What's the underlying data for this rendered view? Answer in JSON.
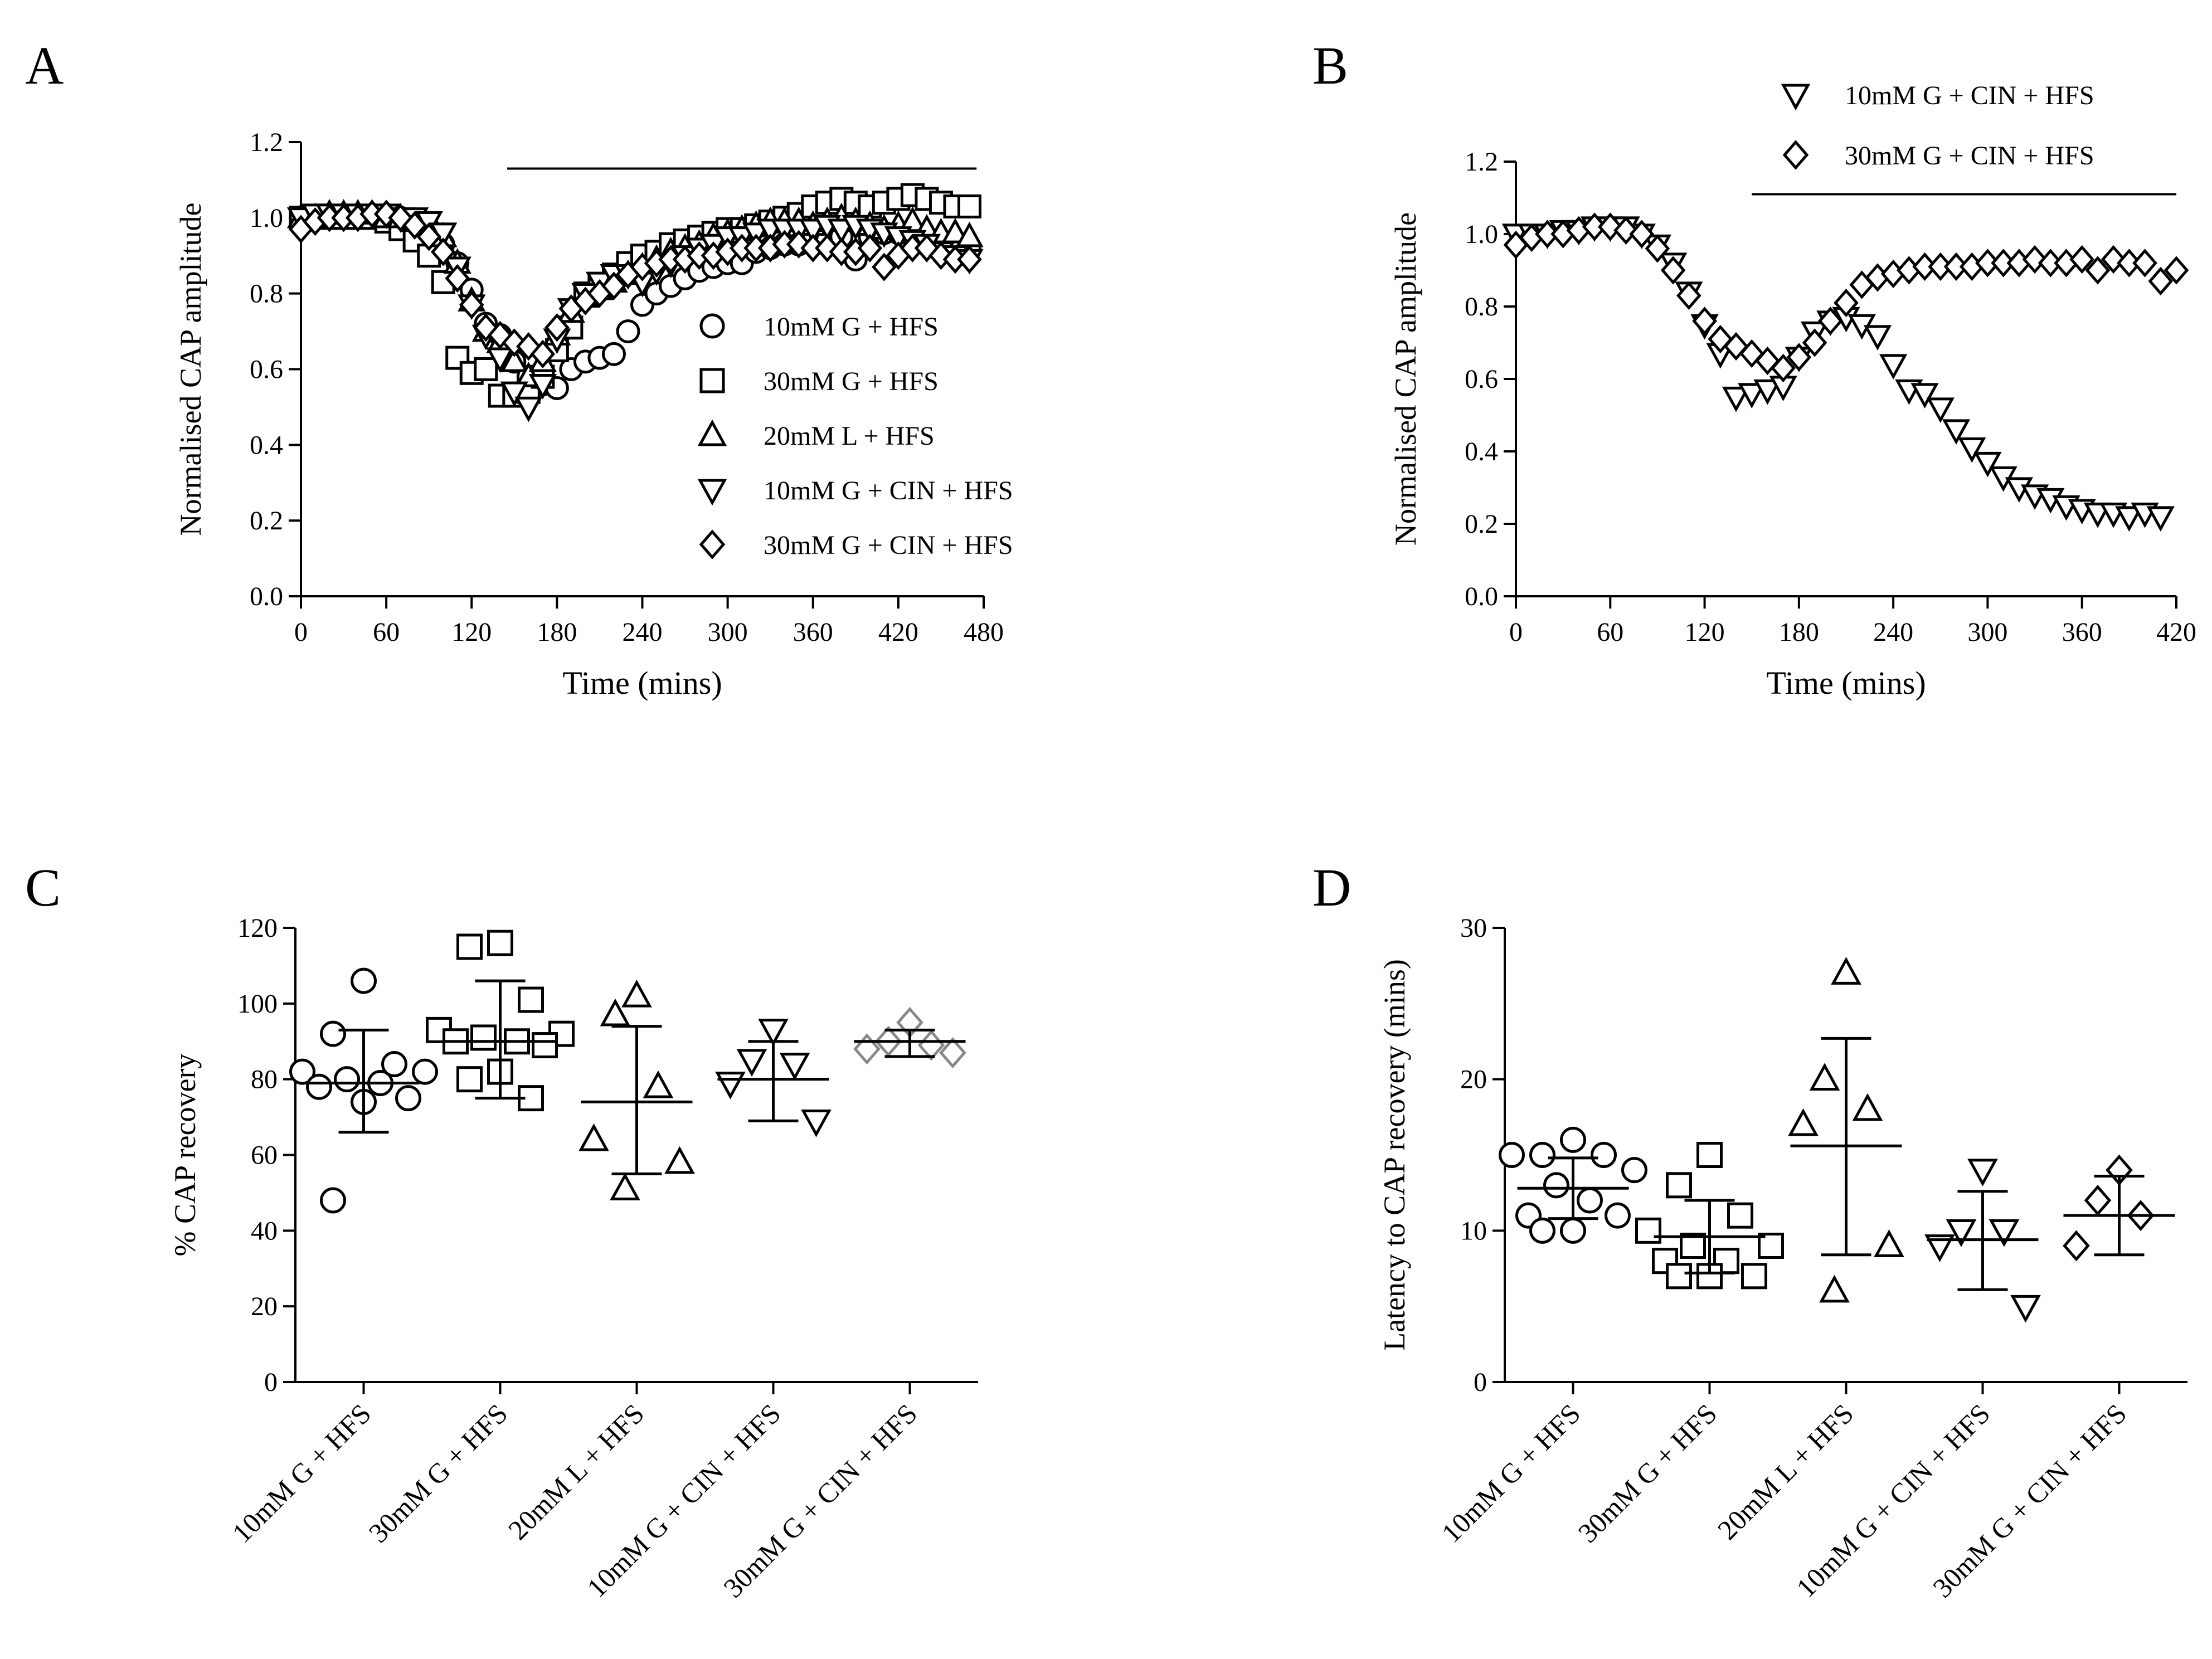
{
  "chart_data": [
    {
      "panel": "A",
      "type": "scatter",
      "xlabel": "Time (mins)",
      "ylabel": "Normalised CAP amplitude",
      "xlim": [
        0,
        480
      ],
      "ylim": [
        0.0,
        1.2
      ],
      "xticks": [
        "0",
        "60",
        "120",
        "180",
        "240",
        "300",
        "360",
        "420",
        "480"
      ],
      "yticks": [
        "0.0",
        "0.2",
        "0.4",
        "0.6",
        "0.8",
        "1.0",
        "1.2"
      ],
      "bar": {
        "x": [
          145,
          475
        ],
        "y": 1.13
      },
      "legend": "right",
      "series": [
        {
          "name": "10mM G + HFS",
          "marker": "circle",
          "x": [
            0,
            10,
            20,
            30,
            40,
            50,
            60,
            70,
            80,
            90,
            100,
            110,
            120,
            130,
            140,
            150,
            160,
            170,
            180,
            190,
            200,
            210,
            220,
            230,
            240,
            250,
            260,
            270,
            280,
            290,
            300,
            310,
            320,
            330,
            340,
            350,
            360,
            370,
            380,
            390,
            400,
            410,
            420,
            430,
            440,
            450,
            460,
            470
          ],
          "y": [
            0.99,
            1.0,
            1.0,
            1.0,
            1.0,
            1.0,
            1.0,
            1.0,
            0.99,
            0.97,
            0.93,
            0.88,
            0.81,
            0.72,
            0.69,
            0.62,
            0.58,
            0.56,
            0.55,
            0.6,
            0.62,
            0.63,
            0.64,
            0.7,
            0.77,
            0.8,
            0.82,
            0.84,
            0.86,
            0.87,
            0.88,
            0.88,
            0.91,
            0.92,
            0.93,
            0.93,
            0.94,
            0.94,
            0.95,
            0.89,
            0.95,
            0.96,
            0.96,
            0.95,
            0.93,
            0.92,
            0.91,
            0.92
          ]
        },
        {
          "name": "30mM G + HFS",
          "marker": "square",
          "x": [
            0,
            10,
            20,
            30,
            40,
            50,
            60,
            70,
            80,
            90,
            100,
            110,
            120,
            130,
            140,
            150,
            160,
            170,
            180,
            190,
            200,
            210,
            220,
            230,
            240,
            250,
            260,
            270,
            280,
            290,
            300,
            310,
            320,
            330,
            340,
            350,
            360,
            370,
            380,
            390,
            400,
            410,
            420,
            430,
            440,
            450,
            460,
            470
          ],
          "y": [
            1.0,
            1.0,
            1.0,
            1.0,
            1.0,
            1.0,
            0.99,
            0.97,
            0.94,
            0.9,
            0.83,
            0.63,
            0.59,
            0.6,
            0.53,
            0.53,
            0.54,
            0.58,
            0.65,
            0.71,
            0.8,
            0.82,
            0.85,
            0.88,
            0.9,
            0.91,
            0.93,
            0.94,
            0.95,
            0.96,
            0.97,
            0.97,
            0.98,
            0.99,
            1.0,
            1.01,
            1.03,
            1.04,
            1.05,
            1.04,
            1.03,
            1.04,
            1.05,
            1.06,
            1.05,
            1.04,
            1.03,
            1.03
          ]
        },
        {
          "name": "20mM L + HFS",
          "marker": "triangle-up",
          "x": [
            0,
            10,
            20,
            30,
            40,
            50,
            60,
            70,
            80,
            90,
            100,
            110,
            120,
            130,
            140,
            150,
            160,
            170,
            180,
            190,
            200,
            210,
            220,
            230,
            240,
            250,
            260,
            270,
            280,
            290,
            300,
            310,
            320,
            330,
            340,
            350,
            360,
            370,
            380,
            390,
            400,
            410,
            420,
            430,
            440,
            450,
            460,
            470
          ],
          "y": [
            1.0,
            1.0,
            1.01,
            1.01,
            1.01,
            1.01,
            1.0,
            1.0,
            0.99,
            0.98,
            0.95,
            0.88,
            0.78,
            0.7,
            0.67,
            0.62,
            0.58,
            0.62,
            0.69,
            0.75,
            0.79,
            0.81,
            0.83,
            0.85,
            0.87,
            0.89,
            0.91,
            0.92,
            0.93,
            0.95,
            0.96,
            0.97,
            0.98,
            0.99,
            0.99,
            0.99,
            0.98,
            0.99,
            1.0,
            0.99,
            0.98,
            0.97,
            0.98,
            0.99,
            0.97,
            0.96,
            0.96,
            0.95
          ]
        },
        {
          "name": "10mM G + CIN + HFS",
          "marker": "triangle-down",
          "x": [
            0,
            10,
            20,
            30,
            40,
            50,
            60,
            70,
            80,
            90,
            100,
            110,
            120,
            130,
            140,
            150,
            160,
            170,
            180,
            190,
            200,
            210,
            220,
            230,
            240,
            250,
            260,
            270,
            280,
            290,
            300,
            310,
            320,
            330,
            340,
            350,
            360,
            370,
            380,
            390,
            400,
            410,
            420,
            430,
            440,
            450,
            460,
            470
          ],
          "y": [
            1.0,
            1.01,
            1.01,
            1.01,
            1.01,
            1.01,
            1.01,
            1.0,
            1.0,
            0.99,
            0.96,
            0.87,
            0.77,
            0.69,
            0.63,
            0.54,
            0.5,
            0.56,
            0.68,
            0.76,
            0.8,
            0.83,
            0.85,
            0.85,
            0.83,
            0.86,
            0.88,
            0.9,
            0.92,
            0.93,
            0.95,
            0.95,
            0.96,
            0.97,
            0.97,
            0.97,
            0.97,
            0.98,
            0.97,
            0.98,
            0.97,
            0.96,
            0.95,
            0.94,
            0.93,
            0.91,
            0.9,
            0.89
          ]
        },
        {
          "name": "30mM G + CIN + HFS",
          "marker": "diamond",
          "x": [
            0,
            10,
            20,
            30,
            40,
            50,
            60,
            70,
            80,
            90,
            100,
            110,
            120,
            130,
            140,
            150,
            160,
            170,
            180,
            190,
            200,
            210,
            220,
            230,
            240,
            250,
            260,
            270,
            280,
            290,
            300,
            310,
            320,
            330,
            340,
            350,
            360,
            370,
            380,
            390,
            400,
            410,
            420,
            430,
            440,
            450,
            460,
            470
          ],
          "y": [
            0.97,
            0.99,
            1.0,
            1.0,
            1.0,
            1.01,
            1.01,
            1.0,
            0.98,
            0.95,
            0.91,
            0.84,
            0.77,
            0.71,
            0.69,
            0.67,
            0.66,
            0.64,
            0.71,
            0.76,
            0.78,
            0.8,
            0.82,
            0.85,
            0.87,
            0.88,
            0.89,
            0.89,
            0.9,
            0.9,
            0.91,
            0.92,
            0.92,
            0.92,
            0.93,
            0.93,
            0.92,
            0.92,
            0.91,
            0.91,
            0.92,
            0.87,
            0.9,
            0.92,
            0.92,
            0.9,
            0.89,
            0.89
          ]
        }
      ]
    },
    {
      "panel": "B",
      "type": "scatter",
      "xlabel": "Time (mins)",
      "ylabel": "Normalised CAP amplitude",
      "xlim": [
        0,
        420
      ],
      "ylim": [
        0.0,
        1.2
      ],
      "xticks": [
        "0",
        "60",
        "120",
        "180",
        "240",
        "300",
        "360",
        "420"
      ],
      "yticks": [
        "0.0",
        "0.2",
        "0.4",
        "0.6",
        "0.8",
        "1.0",
        "1.2"
      ],
      "bar": {
        "x": [
          150,
          420
        ],
        "y": 1.11
      },
      "legend": "top",
      "series": [
        {
          "name": "10mM G + CIN + HFS",
          "marker": "triangle-down",
          "x": [
            0,
            10,
            20,
            30,
            40,
            50,
            60,
            70,
            80,
            90,
            100,
            110,
            120,
            130,
            140,
            150,
            160,
            170,
            180,
            190,
            200,
            210,
            220,
            230,
            240,
            250,
            260,
            270,
            280,
            290,
            300,
            310,
            320,
            330,
            340,
            350,
            360,
            370,
            380,
            390,
            400,
            410
          ],
          "y": [
            1.0,
            1.0,
            1.0,
            1.01,
            1.01,
            1.02,
            1.02,
            1.02,
            1.0,
            0.97,
            0.92,
            0.84,
            0.75,
            0.67,
            0.55,
            0.56,
            0.57,
            0.58,
            0.66,
            0.73,
            0.76,
            0.77,
            0.75,
            0.72,
            0.64,
            0.57,
            0.56,
            0.52,
            0.46,
            0.41,
            0.37,
            0.33,
            0.3,
            0.28,
            0.27,
            0.25,
            0.24,
            0.23,
            0.23,
            0.22,
            0.23,
            0.22
          ]
        },
        {
          "name": "30mM G + CIN + HFS",
          "marker": "diamond",
          "x": [
            0,
            10,
            20,
            30,
            40,
            50,
            60,
            70,
            80,
            90,
            100,
            110,
            120,
            130,
            140,
            150,
            160,
            170,
            180,
            190,
            200,
            210,
            220,
            230,
            240,
            250,
            260,
            270,
            280,
            290,
            300,
            310,
            320,
            330,
            340,
            350,
            360,
            370,
            380,
            390,
            400,
            410,
            420
          ],
          "y": [
            0.97,
            0.99,
            1.0,
            1.0,
            1.01,
            1.02,
            1.02,
            1.01,
            1.0,
            0.96,
            0.9,
            0.83,
            0.76,
            0.71,
            0.69,
            0.67,
            0.65,
            0.63,
            0.66,
            0.7,
            0.76,
            0.81,
            0.86,
            0.88,
            0.89,
            0.9,
            0.91,
            0.91,
            0.91,
            0.91,
            0.92,
            0.92,
            0.92,
            0.93,
            0.92,
            0.92,
            0.93,
            0.9,
            0.93,
            0.92,
            0.92,
            0.87,
            0.9
          ]
        }
      ]
    },
    {
      "panel": "C",
      "type": "scatter",
      "ylabel": "% CAP recovery",
      "ylim": [
        0,
        120
      ],
      "yticks": [
        "0",
        "20",
        "40",
        "60",
        "80",
        "100",
        "120"
      ],
      "categories": [
        "10mM G + HFS",
        "30mM G + HFS",
        "20mM L + HFS",
        "10mM G + CIN + HFS",
        "30mM G + CIN + HFS"
      ],
      "groups": [
        {
          "marker": "circle",
          "mean": 79,
          "sd_low": 66,
          "sd_high": 93,
          "points": [
            106,
            92,
            84,
            82,
            82,
            80,
            79,
            78,
            75,
            74,
            48
          ]
        },
        {
          "marker": "square",
          "mean": 90,
          "sd_low": 75,
          "sd_high": 106,
          "points": [
            116,
            115,
            101,
            93,
            92,
            91,
            90,
            90,
            89,
            82,
            80,
            75
          ]
        },
        {
          "marker": "triangle-up",
          "mean": 74,
          "sd_low": 55,
          "sd_high": 94,
          "points": [
            102,
            97,
            78,
            64,
            58,
            51
          ]
        },
        {
          "marker": "triangle-down",
          "mean": 80,
          "sd_low": 69,
          "sd_high": 90,
          "points": [
            93,
            85,
            84,
            79,
            69
          ]
        },
        {
          "marker": "diamond-grey",
          "mean": 90,
          "sd_low": 86,
          "sd_high": 93,
          "points": [
            95,
            90,
            89,
            88,
            87
          ]
        }
      ]
    },
    {
      "panel": "D",
      "type": "scatter",
      "ylabel": "Latency to CAP recovery (mins)",
      "ylim": [
        0,
        30
      ],
      "yticks": [
        "0",
        "10",
        "20",
        "30"
      ],
      "categories": [
        "10mM G + HFS",
        "30mM G + HFS",
        "20mM L + HFS",
        "10mM G + CIN + HFS",
        "30mM G + CIN + HFS"
      ],
      "groups": [
        {
          "marker": "circle",
          "mean": 12.8,
          "sd_low": 10.8,
          "sd_high": 14.8,
          "points": [
            16,
            15,
            15,
            15,
            14,
            13,
            12,
            11,
            11,
            10,
            10
          ]
        },
        {
          "marker": "square",
          "mean": 9.6,
          "sd_low": 7.2,
          "sd_high": 12.0,
          "points": [
            15,
            13,
            11,
            10,
            9,
            9,
            8,
            8,
            7,
            7,
            7
          ]
        },
        {
          "marker": "triangle-up",
          "mean": 15.6,
          "sd_low": 8.4,
          "sd_high": 22.7,
          "points": [
            27,
            20,
            18,
            17,
            9,
            6
          ]
        },
        {
          "marker": "triangle-down",
          "mean": 9.4,
          "sd_low": 6.1,
          "sd_high": 12.6,
          "points": [
            14,
            10,
            10,
            9,
            5
          ]
        },
        {
          "marker": "diamond",
          "mean": 11.0,
          "sd_low": 8.4,
          "sd_high": 13.6,
          "points": [
            14,
            12,
            11,
            9
          ]
        }
      ]
    }
  ],
  "panel_labels": [
    "A",
    "B",
    "C",
    "D"
  ]
}
